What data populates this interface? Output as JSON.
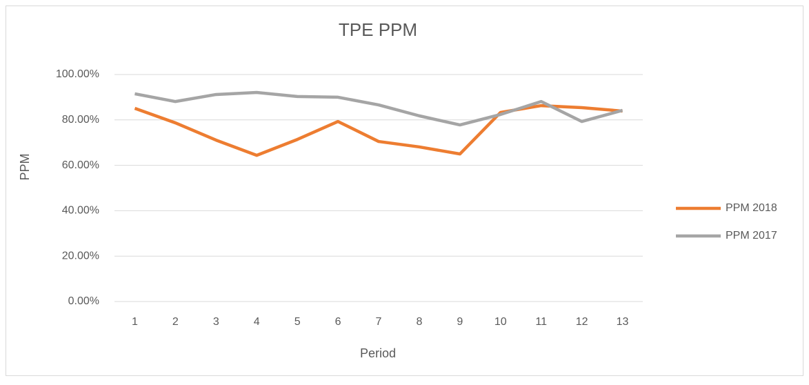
{
  "chart_data": {
    "type": "line",
    "title": "TPE PPM",
    "x_label": "Period",
    "y_label": "PPM",
    "categories": [
      "1",
      "2",
      "3",
      "4",
      "5",
      "6",
      "7",
      "8",
      "9",
      "10",
      "11",
      "12",
      "13"
    ],
    "series": [
      {
        "name": "PPM 2018",
        "color": "#ed7d31",
        "values": [
          85.1,
          78.7,
          71.1,
          64.4,
          71.4,
          79.3,
          70.5,
          68.1,
          65.0,
          83.3,
          86.3,
          85.4,
          83.9
        ]
      },
      {
        "name": "PPM 2017",
        "color": "#a5a5a5",
        "values": [
          91.5,
          88.1,
          91.2,
          92.1,
          90.3,
          90.0,
          86.6,
          81.8,
          77.8,
          82.4,
          88.1,
          79.3,
          84.2
        ]
      }
    ],
    "ylim": [
      0,
      100
    ],
    "yticks": [
      {
        "value": 0,
        "label": "0.00%"
      },
      {
        "value": 20,
        "label": "20.00%"
      },
      {
        "value": 40,
        "label": "40.00%"
      },
      {
        "value": 60,
        "label": "60.00%"
      },
      {
        "value": 80,
        "label": "80.00%"
      },
      {
        "value": 100,
        "label": "100.00%"
      }
    ],
    "grid": true,
    "legend": "right"
  }
}
